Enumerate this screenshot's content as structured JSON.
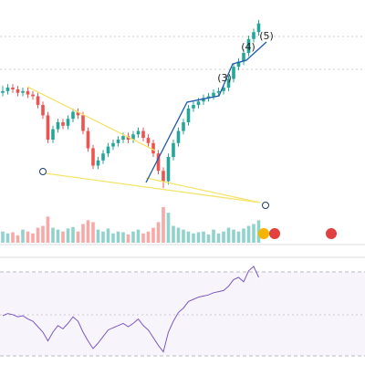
{
  "chart_data": {
    "type": "candlestick",
    "annotations": [
      "(5)",
      "(4)",
      "(3)"
    ],
    "ylim": [
      0,
      100
    ],
    "up_color": "#26a69a",
    "down_color": "#ef5350",
    "candles": [
      [
        57,
        61,
        55,
        58
      ],
      [
        58,
        62,
        56,
        60
      ],
      [
        60,
        62,
        57,
        59
      ],
      [
        59,
        61,
        55,
        57
      ],
      [
        57,
        60,
        55,
        58
      ],
      [
        58,
        60,
        54,
        56
      ],
      [
        56,
        58,
        53,
        55
      ],
      [
        55,
        57,
        48,
        50
      ],
      [
        50,
        52,
        42,
        44
      ],
      [
        44,
        46,
        28,
        30
      ],
      [
        30,
        38,
        28,
        36
      ],
      [
        36,
        42,
        34,
        40
      ],
      [
        40,
        42,
        36,
        38
      ],
      [
        38,
        44,
        36,
        42
      ],
      [
        42,
        48,
        40,
        46
      ],
      [
        46,
        48,
        42,
        44
      ],
      [
        44,
        46,
        33,
        35
      ],
      [
        35,
        37,
        23,
        25
      ],
      [
        25,
        27,
        13,
        15
      ],
      [
        15,
        20,
        13,
        18
      ],
      [
        18,
        24,
        16,
        22
      ],
      [
        22,
        28,
        20,
        26
      ],
      [
        26,
        30,
        24,
        28
      ],
      [
        28,
        32,
        26,
        30
      ],
      [
        30,
        34,
        28,
        32
      ],
      [
        32,
        34,
        28,
        30
      ],
      [
        30,
        35,
        28,
        33
      ],
      [
        33,
        37,
        31,
        35
      ],
      [
        35,
        37,
        29,
        31
      ],
      [
        31,
        33,
        26,
        28
      ],
      [
        28,
        30,
        20,
        22
      ],
      [
        22,
        24,
        10,
        12
      ],
      [
        12,
        14,
        2,
        6
      ],
      [
        6,
        22,
        4,
        20
      ],
      [
        20,
        30,
        18,
        28
      ],
      [
        28,
        37,
        26,
        35
      ],
      [
        35,
        42,
        33,
        40
      ],
      [
        40,
        50,
        38,
        48
      ],
      [
        48,
        52,
        46,
        50
      ],
      [
        50,
        54,
        48,
        52
      ],
      [
        52,
        56,
        50,
        54
      ],
      [
        54,
        57,
        52,
        55
      ],
      [
        55,
        59,
        53,
        57
      ],
      [
        57,
        60,
        55,
        58
      ],
      [
        58,
        62,
        56,
        60
      ],
      [
        60,
        67,
        58,
        65
      ],
      [
        65,
        74,
        63,
        72
      ],
      [
        72,
        77,
        70,
        75
      ],
      [
        75,
        82,
        73,
        80
      ],
      [
        80,
        90,
        78,
        88
      ],
      [
        88,
        94,
        86,
        92
      ],
      [
        92,
        99,
        90,
        97
      ]
    ],
    "volume_ylim": [
      0,
      100
    ],
    "volume": [
      30,
      25,
      28,
      20,
      35,
      30,
      25,
      40,
      45,
      70,
      40,
      35,
      30,
      38,
      42,
      30,
      50,
      60,
      55,
      35,
      30,
      38,
      25,
      30,
      28,
      22,
      30,
      35,
      25,
      30,
      40,
      55,
      95,
      80,
      45,
      40,
      35,
      30,
      25,
      28,
      30,
      22,
      35,
      25,
      30,
      40,
      35,
      30,
      38,
      45,
      50,
      60
    ],
    "rsi_ylim": [
      0,
      100
    ],
    "rsi_color": "#7e57c2",
    "rsi": [
      45,
      47,
      46,
      44,
      45,
      42,
      40,
      35,
      30,
      22,
      30,
      36,
      33,
      38,
      44,
      40,
      30,
      22,
      15,
      20,
      26,
      32,
      34,
      36,
      38,
      35,
      38,
      42,
      36,
      32,
      25,
      18,
      12,
      30,
      40,
      48,
      52,
      58,
      60,
      62,
      63,
      64,
      66,
      67,
      68,
      72,
      78,
      80,
      76,
      86,
      90,
      80
    ]
  }
}
